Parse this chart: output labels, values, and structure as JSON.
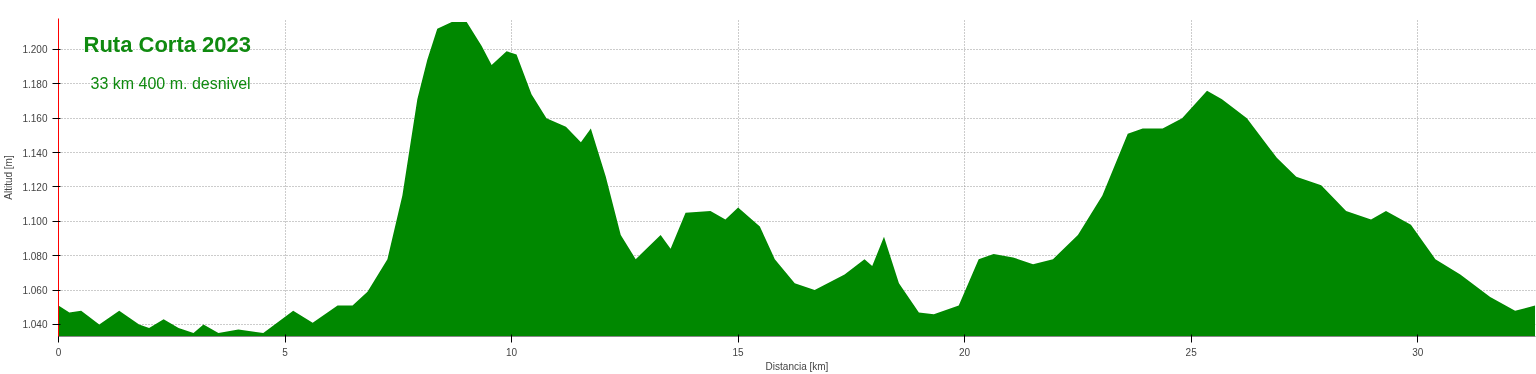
{
  "chart_data": {
    "type": "area",
    "title": "Ruta Corta 2023",
    "subtitle": "33 km 400 m. desnivel",
    "xlabel": "Distancia [km]",
    "ylabel": "Altitud [m]",
    "xlim": [
      0,
      32.6
    ],
    "ylim": [
      1033,
      1218
    ],
    "xticks": [
      0,
      5,
      10,
      15,
      20,
      25,
      30
    ],
    "yticks": [
      {
        "value": 1040,
        "label": "1.040"
      },
      {
        "value": 1060,
        "label": "1.060"
      },
      {
        "value": 1080,
        "label": "1.080"
      },
      {
        "value": 1100,
        "label": "1.100"
      },
      {
        "value": 1120,
        "label": "1.120"
      },
      {
        "value": 1140,
        "label": "1.140"
      },
      {
        "value": 1160,
        "label": "1.160"
      },
      {
        "value": 1180,
        "label": "1.180"
      },
      {
        "value": 1200,
        "label": "1.200"
      }
    ],
    "grid": true,
    "x": [
      0,
      0.24,
      0.5,
      0.9,
      1.34,
      1.78,
      2.0,
      2.32,
      2.65,
      2.98,
      3.2,
      3.53,
      3.97,
      4.52,
      5.18,
      5.61,
      6.16,
      6.49,
      6.82,
      7.26,
      7.59,
      7.92,
      8.14,
      8.36,
      8.68,
      9.01,
      9.34,
      9.56,
      9.89,
      10.11,
      10.44,
      10.77,
      11.2,
      11.53,
      11.75,
      12.08,
      12.41,
      12.74,
      13.29,
      13.51,
      13.84,
      14.39,
      14.72,
      15.0,
      15.48,
      15.81,
      16.25,
      16.69,
      17.35,
      17.79,
      17.96,
      18.22,
      18.55,
      18.99,
      19.32,
      19.87,
      20.31,
      20.64,
      21.07,
      21.51,
      21.95,
      22.5,
      23.04,
      23.6,
      23.93,
      24.37,
      24.8,
      25.35,
      25.68,
      26.23,
      26.89,
      27.32,
      27.87,
      28.42,
      28.97,
      29.3,
      29.85,
      30.39,
      30.94,
      31.6,
      32.15,
      32.59
    ],
    "series": [
      {
        "color": "#008800",
        "values": [
          1051,
          1047,
          1048,
          1040,
          1048,
          1040,
          1038,
          1043,
          1038,
          1035,
          1040,
          1035,
          1037,
          1035,
          1048,
          1041,
          1051,
          1051,
          1059,
          1078,
          1115,
          1171,
          1194,
          1212,
          1216,
          1216,
          1202,
          1191,
          1199,
          1197,
          1174,
          1160,
          1155,
          1146,
          1154,
          1126,
          1092,
          1078,
          1092,
          1084,
          1105,
          1106,
          1101,
          1108,
          1097,
          1078,
          1064,
          1060,
          1069,
          1078,
          1074,
          1091,
          1064,
          1047,
          1046,
          1051,
          1078,
          1081,
          1079,
          1075,
          1078,
          1092,
          1115,
          1151,
          1154,
          1154,
          1160,
          1176,
          1171,
          1160,
          1137,
          1126,
          1121,
          1106,
          1101,
          1106,
          1098,
          1078,
          1069,
          1056,
          1048,
          1051
        ]
      }
    ]
  }
}
